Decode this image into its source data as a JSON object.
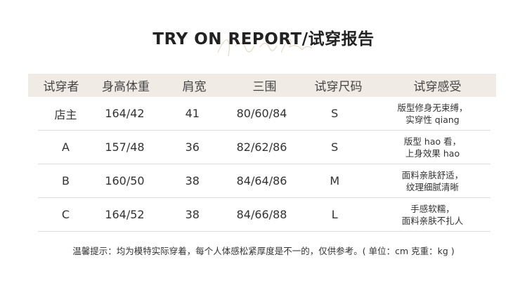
{
  "title": "TRY ON REPORT/试穿报告",
  "watermark": "Try on Report",
  "headers": [
    "试穿者",
    "身高体重",
    "肩宽",
    "三围",
    "试穿尺码",
    "试穿感受"
  ],
  "rows": [
    {
      "name": "店主",
      "hw": "164/42",
      "shoulder": "41",
      "bwh": "80/60/84",
      "size": "S",
      "note1": "版型修身无束缚，",
      "note2": "实穿性 qiang"
    },
    {
      "name": "A",
      "hw": "157/48",
      "shoulder": "36",
      "bwh": "82/62/86",
      "size": "S",
      "note1": "版型 hao 看，",
      "note2": "上身效果 hao"
    },
    {
      "name": "B",
      "hw": "160/50",
      "shoulder": "38",
      "bwh": "84/64/86",
      "size": "M",
      "note1": "面料亲肤舒适，",
      "note2": "纹理细腻清晰"
    },
    {
      "name": "C",
      "hw": "164/52",
      "shoulder": "38",
      "bwh": "84/66/88",
      "size": "L",
      "note1": "手感软糯，",
      "note2": "面料亲肤不扎人"
    }
  ],
  "footer": "温馨提示：均为模特实际穿着，每个人体感松紧厚度是不一的，仅供参考。( 单位：cm 克重：kg )",
  "colors": {
    "header_bg": "#f1ebe5",
    "watermark": "#e2d3bf"
  }
}
